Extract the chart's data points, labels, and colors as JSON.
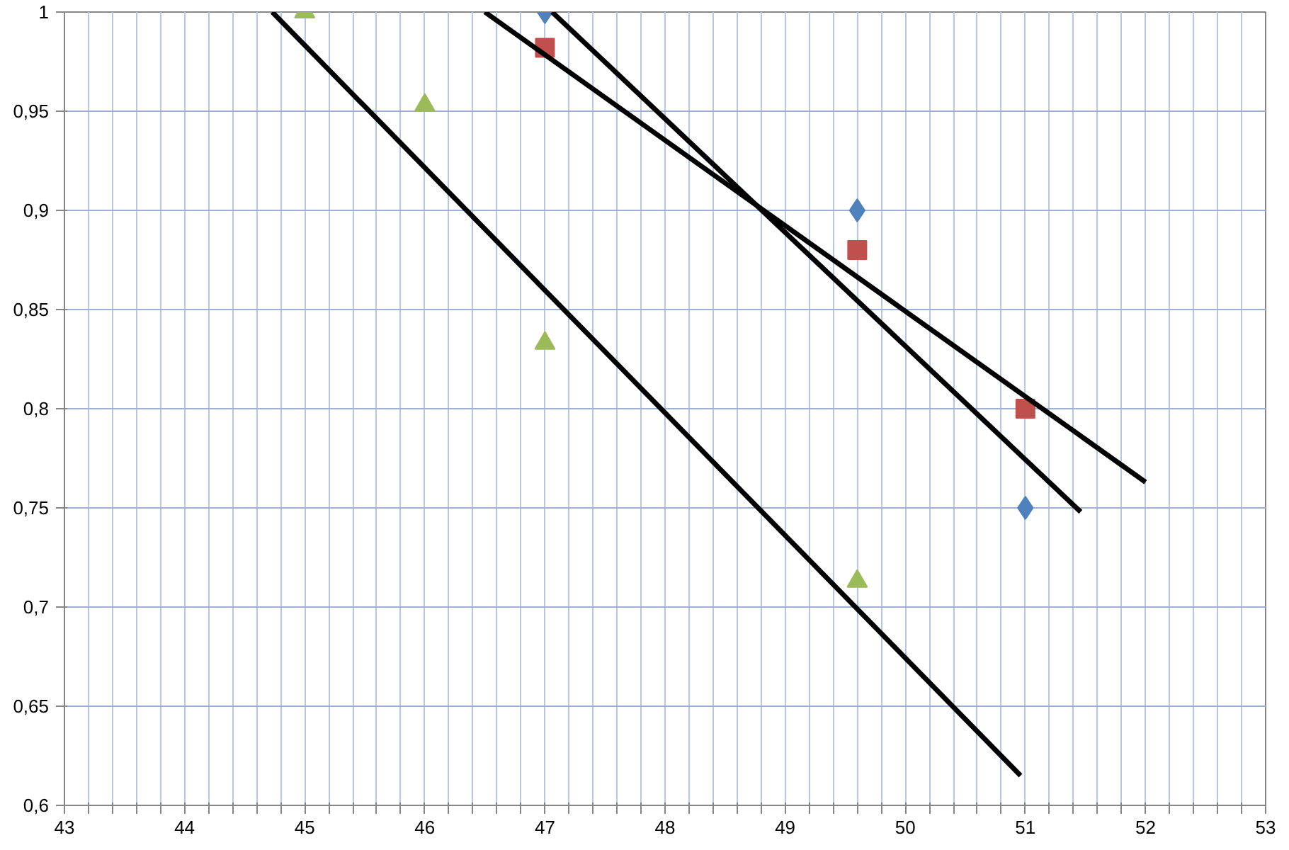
{
  "chart_data": {
    "type": "scatter",
    "xlim": [
      43,
      53
    ],
    "ylim": [
      0.6,
      1
    ],
    "xticks": [
      {
        "value": 43,
        "label": "43"
      },
      {
        "value": 43.2,
        "label": null
      },
      {
        "value": 43.4,
        "label": null
      },
      {
        "value": 43.6,
        "label": null
      },
      {
        "value": 43.8,
        "label": null
      },
      {
        "value": 44,
        "label": "44"
      },
      {
        "value": 44.2,
        "label": null
      },
      {
        "value": 44.4,
        "label": null
      },
      {
        "value": 44.6,
        "label": null
      },
      {
        "value": 44.8,
        "label": null
      },
      {
        "value": 45,
        "label": "45"
      },
      {
        "value": 45.2,
        "label": null
      },
      {
        "value": 45.4,
        "label": null
      },
      {
        "value": 45.6,
        "label": null
      },
      {
        "value": 45.8,
        "label": null
      },
      {
        "value": 46,
        "label": "46"
      },
      {
        "value": 46.2,
        "label": null
      },
      {
        "value": 46.4,
        "label": null
      },
      {
        "value": 46.6,
        "label": null
      },
      {
        "value": 46.8,
        "label": null
      },
      {
        "value": 47,
        "label": "47"
      },
      {
        "value": 47.2,
        "label": null
      },
      {
        "value": 47.4,
        "label": null
      },
      {
        "value": 47.6,
        "label": null
      },
      {
        "value": 47.8,
        "label": null
      },
      {
        "value": 48,
        "label": "48"
      },
      {
        "value": 48.2,
        "label": null
      },
      {
        "value": 48.4,
        "label": null
      },
      {
        "value": 48.6,
        "label": null
      },
      {
        "value": 48.8,
        "label": null
      },
      {
        "value": 49,
        "label": "49"
      },
      {
        "value": 49.2,
        "label": null
      },
      {
        "value": 49.4,
        "label": null
      },
      {
        "value": 49.6,
        "label": null
      },
      {
        "value": 49.8,
        "label": null
      },
      {
        "value": 50,
        "label": "50"
      },
      {
        "value": 50.2,
        "label": null
      },
      {
        "value": 50.4,
        "label": null
      },
      {
        "value": 50.6,
        "label": null
      },
      {
        "value": 50.8,
        "label": null
      },
      {
        "value": 51,
        "label": "51"
      },
      {
        "value": 51.2,
        "label": null
      },
      {
        "value": 51.4,
        "label": null
      },
      {
        "value": 51.6,
        "label": null
      },
      {
        "value": 51.8,
        "label": null
      },
      {
        "value": 52,
        "label": "52"
      },
      {
        "value": 52.2,
        "label": null
      },
      {
        "value": 52.4,
        "label": null
      },
      {
        "value": 52.6,
        "label": null
      },
      {
        "value": 52.8,
        "label": null
      },
      {
        "value": 53,
        "label": "53"
      }
    ],
    "yticks": [
      {
        "value": 0.6,
        "label": "0,6"
      },
      {
        "value": 0.65,
        "label": "0,65"
      },
      {
        "value": 0.7,
        "label": "0,7"
      },
      {
        "value": 0.75,
        "label": "0,75"
      },
      {
        "value": 0.8,
        "label": "0,8"
      },
      {
        "value": 0.85,
        "label": "0,85"
      },
      {
        "value": 0.9,
        "label": "0,9"
      },
      {
        "value": 0.95,
        "label": "0,95"
      },
      {
        "value": 1,
        "label": "1"
      }
    ],
    "grid": true,
    "series": [
      {
        "marker": "diamond",
        "color": "#4f81bd",
        "x": [
          47,
          49.6,
          51
        ],
        "values": [
          1.0,
          0.9,
          0.75
        ]
      },
      {
        "marker": "square",
        "color": "#c0504d",
        "x": [
          47,
          49.6,
          51
        ],
        "values": [
          0.982,
          0.88,
          0.8
        ]
      },
      {
        "marker": "triangle",
        "color": "#9bbb59",
        "x": [
          45,
          46,
          47,
          49.6
        ],
        "values": [
          1.0,
          0.953,
          0.833,
          0.713
        ]
      },
      {
        "type": "line",
        "color": "#000000",
        "x": [
          47.06,
          51.46
        ],
        "values": [
          1.0,
          0.748
        ]
      },
      {
        "type": "line",
        "color": "#000000",
        "x": [
          46.5,
          52
        ],
        "values": [
          1.0,
          0.763
        ]
      },
      {
        "type": "line",
        "color": "#000000",
        "x": [
          44.73,
          50.96
        ],
        "values": [
          1.0,
          0.615
        ]
      }
    ]
  }
}
